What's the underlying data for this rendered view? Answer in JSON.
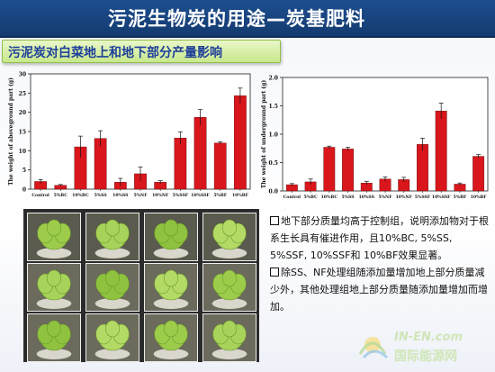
{
  "header": {
    "title": "污泥生物炭的用途—炭基肥料"
  },
  "section": {
    "subtitle": "污泥炭对白菜地上和地下部分产量影响"
  },
  "chart_data": [
    {
      "type": "bar",
      "ylabel": "The weight of aboveground part (g)",
      "ylim": [
        0,
        30
      ],
      "yticks": [
        0,
        5,
        10,
        15,
        20,
        25,
        30
      ],
      "categories": [
        "Control",
        "5%BC",
        "10%BC",
        "5%SS",
        "10%SS",
        "5%NF",
        "10%NF",
        "5%SSF",
        "10%SSF",
        "5%BF",
        "10%BF"
      ],
      "values": [
        2.0,
        1.0,
        11.0,
        13.2,
        1.8,
        4.0,
        1.8,
        13.3,
        18.7,
        12.0,
        24.3
      ],
      "errors": [
        0.5,
        0.2,
        2.8,
        2.0,
        1.0,
        1.8,
        0.4,
        1.6,
        2.0,
        0.3,
        2.0
      ],
      "bar_color": "#d9161c"
    },
    {
      "type": "bar",
      "ylabel": "The weight of underground part (g)",
      "ylim": [
        0,
        2.0
      ],
      "yticks": [
        0.0,
        0.5,
        1.0,
        1.5,
        2.0
      ],
      "categories": [
        "Control",
        "5%BC",
        "10%BC",
        "5%SS",
        "10%SS",
        "5%NF",
        "10%NF",
        "5%SSF",
        "10%SSF",
        "5%BF",
        "10%BF"
      ],
      "values": [
        0.11,
        0.16,
        0.77,
        0.74,
        0.14,
        0.21,
        0.2,
        0.82,
        1.41,
        0.12,
        0.61
      ],
      "errors": [
        0.02,
        0.05,
        0.02,
        0.03,
        0.03,
        0.04,
        0.04,
        0.11,
        0.14,
        0.02,
        0.03
      ],
      "bar_color": "#d9161c"
    }
  ],
  "notes": {
    "p1": "地下部分质量均高于控制组，说明添加物对于根系生长具有催进作用，且10%BC, 5%SS, 5%SSF, 10%SSF和 10%BF效果显著。",
    "p2": "除SS、NF处理组随添加量增加地上部分质量减少外，其他处理组地上部分质量随添加量增加而增加。"
  },
  "watermark": {
    "line1": "IN-EN.com",
    "line2": "国际能源网"
  },
  "colors": {
    "title_bg": "#1d4e8f",
    "subtitle_bg": "#c8e88c",
    "subtitle_text": "#1f3f9a",
    "bar": "#d9161c"
  }
}
